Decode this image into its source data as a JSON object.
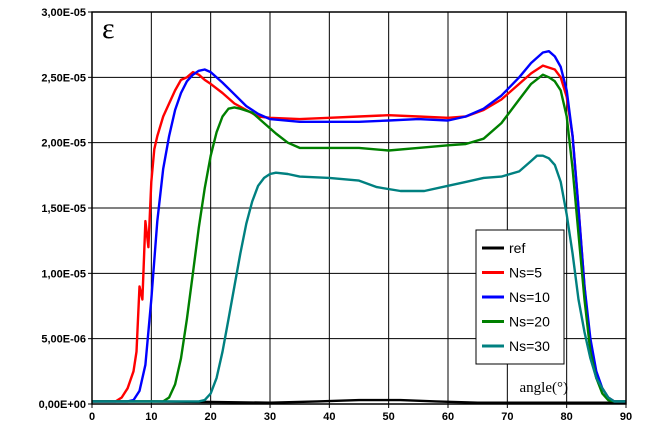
{
  "chart_data": {
    "type": "line",
    "title": "",
    "xlabel": "",
    "ylabel": "",
    "annotations": {
      "symbol": "ε",
      "x_unit": "angle(°)"
    },
    "xlim": [
      0,
      90
    ],
    "ylim": [
      0,
      3e-05
    ],
    "x_ticks": [
      0,
      10,
      20,
      30,
      40,
      50,
      60,
      70,
      80,
      90
    ],
    "x_tick_labels": [
      "0",
      "10",
      "20",
      "30",
      "40",
      "50",
      "60",
      "70",
      "80",
      "90"
    ],
    "y_ticks": [
      0,
      5e-06,
      1e-05,
      1.5e-05,
      2e-05,
      2.5e-05,
      3e-05
    ],
    "y_tick_labels": [
      "0,00E+00",
      "5,00E-06",
      "1,00E-05",
      "1,50E-05",
      "2,00E-05",
      "2,50E-05",
      "3,00E-05"
    ],
    "grid": true,
    "legend": {
      "position": "right-middle",
      "entries": [
        "ref",
        "Ns=5",
        "Ns=10",
        "Ns=20",
        "Ns=30"
      ]
    },
    "series": [
      {
        "name": "ref",
        "color": "#000000",
        "points": [
          [
            0,
            2e-07
          ],
          [
            10,
            2e-07
          ],
          [
            20,
            1.5e-07
          ],
          [
            30,
            1e-07
          ],
          [
            38,
            2e-07
          ],
          [
            45,
            3e-07
          ],
          [
            52,
            3e-07
          ],
          [
            58,
            2e-07
          ],
          [
            65,
            1e-07
          ],
          [
            75,
            1e-07
          ],
          [
            85,
            1e-07
          ],
          [
            90,
            1e-07
          ]
        ]
      },
      {
        "name": "Ns=5",
        "color": "#ff0000",
        "points": [
          [
            0,
            2e-07
          ],
          [
            4,
            2e-07
          ],
          [
            5,
            5e-07
          ],
          [
            6,
            1.2e-06
          ],
          [
            7,
            2.5e-06
          ],
          [
            7.5,
            4e-06
          ],
          [
            8,
            9e-06
          ],
          [
            8.5,
            8e-06
          ],
          [
            9,
            1.4e-05
          ],
          [
            9.5,
            1.2e-05
          ],
          [
            10,
            1.7e-05
          ],
          [
            10.5,
            1.95e-05
          ],
          [
            11,
            2.05e-05
          ],
          [
            12,
            2.2e-05
          ],
          [
            13,
            2.3e-05
          ],
          [
            14,
            2.4e-05
          ],
          [
            15,
            2.48e-05
          ],
          [
            16,
            2.5e-05
          ],
          [
            17,
            2.54e-05
          ],
          [
            18,
            2.52e-05
          ],
          [
            19,
            2.48e-05
          ],
          [
            20,
            2.45e-05
          ],
          [
            22,
            2.38e-05
          ],
          [
            24,
            2.3e-05
          ],
          [
            26,
            2.25e-05
          ],
          [
            28,
            2.2e-05
          ],
          [
            30,
            2.19e-05
          ],
          [
            35,
            2.18e-05
          ],
          [
            40,
            2.19e-05
          ],
          [
            45,
            2.2e-05
          ],
          [
            50,
            2.21e-05
          ],
          [
            55,
            2.2e-05
          ],
          [
            60,
            2.19e-05
          ],
          [
            63,
            2.2e-05
          ],
          [
            66,
            2.25e-05
          ],
          [
            69,
            2.33e-05
          ],
          [
            72,
            2.45e-05
          ],
          [
            74,
            2.53e-05
          ],
          [
            76,
            2.59e-05
          ],
          [
            78,
            2.56e-05
          ],
          [
            79,
            2.5e-05
          ],
          [
            80,
            2.35e-05
          ],
          [
            81,
            2.05e-05
          ],
          [
            82,
            1.5e-05
          ],
          [
            83,
            9e-06
          ],
          [
            84,
            4e-06
          ],
          [
            85,
            2e-06
          ],
          [
            86,
            1.2e-06
          ],
          [
            87,
            5e-07
          ],
          [
            88,
            2e-07
          ],
          [
            90,
            2e-07
          ]
        ]
      },
      {
        "name": "Ns=10",
        "color": "#0000ff",
        "points": [
          [
            0,
            2e-07
          ],
          [
            6,
            2e-07
          ],
          [
            7,
            3e-07
          ],
          [
            8,
            1e-06
          ],
          [
            9,
            3e-06
          ],
          [
            10,
            8e-06
          ],
          [
            11,
            1.4e-05
          ],
          [
            12,
            1.8e-05
          ],
          [
            13,
            2.05e-05
          ],
          [
            14,
            2.25e-05
          ],
          [
            15,
            2.38e-05
          ],
          [
            16,
            2.47e-05
          ],
          [
            17,
            2.52e-05
          ],
          [
            18,
            2.55e-05
          ],
          [
            19,
            2.56e-05
          ],
          [
            20,
            2.54e-05
          ],
          [
            22,
            2.46e-05
          ],
          [
            24,
            2.37e-05
          ],
          [
            26,
            2.28e-05
          ],
          [
            28,
            2.22e-05
          ],
          [
            30,
            2.18e-05
          ],
          [
            35,
            2.16e-05
          ],
          [
            40,
            2.16e-05
          ],
          [
            45,
            2.16e-05
          ],
          [
            50,
            2.17e-05
          ],
          [
            55,
            2.18e-05
          ],
          [
            60,
            2.17e-05
          ],
          [
            63,
            2.2e-05
          ],
          [
            66,
            2.26e-05
          ],
          [
            69,
            2.36e-05
          ],
          [
            72,
            2.5e-05
          ],
          [
            74,
            2.61e-05
          ],
          [
            76,
            2.69e-05
          ],
          [
            77,
            2.7e-05
          ],
          [
            78,
            2.66e-05
          ],
          [
            79,
            2.58e-05
          ],
          [
            80,
            2.4e-05
          ],
          [
            81,
            2.05e-05
          ],
          [
            82,
            1.5e-05
          ],
          [
            83,
            9e-06
          ],
          [
            84,
            5e-06
          ],
          [
            85,
            2.5e-06
          ],
          [
            86,
            1.2e-06
          ],
          [
            87,
            5e-07
          ],
          [
            88,
            2e-07
          ],
          [
            90,
            2e-07
          ]
        ]
      },
      {
        "name": "Ns=20",
        "color": "#008000",
        "points": [
          [
            0,
            2e-07
          ],
          [
            12,
            2e-07
          ],
          [
            13,
            5e-07
          ],
          [
            14,
            1.5e-06
          ],
          [
            15,
            3.5e-06
          ],
          [
            16,
            6.5e-06
          ],
          [
            17,
            1e-05
          ],
          [
            18,
            1.35e-05
          ],
          [
            19,
            1.65e-05
          ],
          [
            20,
            1.9e-05
          ],
          [
            21,
            2.08e-05
          ],
          [
            22,
            2.2e-05
          ],
          [
            23,
            2.26e-05
          ],
          [
            24,
            2.27e-05
          ],
          [
            25,
            2.26e-05
          ],
          [
            27,
            2.23e-05
          ],
          [
            29,
            2.15e-05
          ],
          [
            31,
            2.07e-05
          ],
          [
            33,
            2e-05
          ],
          [
            35,
            1.96e-05
          ],
          [
            40,
            1.96e-05
          ],
          [
            45,
            1.96e-05
          ],
          [
            50,
            1.94e-05
          ],
          [
            55,
            1.96e-05
          ],
          [
            60,
            1.98e-05
          ],
          [
            63,
            1.99e-05
          ],
          [
            66,
            2.03e-05
          ],
          [
            69,
            2.15e-05
          ],
          [
            72,
            2.33e-05
          ],
          [
            74,
            2.45e-05
          ],
          [
            76,
            2.52e-05
          ],
          [
            77,
            2.5e-05
          ],
          [
            78,
            2.47e-05
          ],
          [
            79,
            2.4e-05
          ],
          [
            80,
            2.2e-05
          ],
          [
            81,
            1.8e-05
          ],
          [
            82,
            1.3e-05
          ],
          [
            83,
            8e-06
          ],
          [
            84,
            4e-06
          ],
          [
            85,
            2e-06
          ],
          [
            86,
            8e-07
          ],
          [
            87,
            3e-07
          ],
          [
            88,
            2e-07
          ],
          [
            90,
            2e-07
          ]
        ]
      },
      {
        "name": "Ns=30",
        "color": "#008080",
        "points": [
          [
            0,
            2e-07
          ],
          [
            18,
            2e-07
          ],
          [
            19,
            3e-07
          ],
          [
            20,
            8e-07
          ],
          [
            21,
            2e-06
          ],
          [
            22,
            4e-06
          ],
          [
            23,
            6.5e-06
          ],
          [
            24,
            9e-06
          ],
          [
            25,
            1.15e-05
          ],
          [
            26,
            1.38e-05
          ],
          [
            27,
            1.55e-05
          ],
          [
            28,
            1.67e-05
          ],
          [
            29,
            1.73e-05
          ],
          [
            30,
            1.76e-05
          ],
          [
            31,
            1.77e-05
          ],
          [
            33,
            1.76e-05
          ],
          [
            35,
            1.74e-05
          ],
          [
            40,
            1.73e-05
          ],
          [
            45,
            1.71e-05
          ],
          [
            48,
            1.66e-05
          ],
          [
            52,
            1.63e-05
          ],
          [
            56,
            1.63e-05
          ],
          [
            60,
            1.67e-05
          ],
          [
            63,
            1.7e-05
          ],
          [
            66,
            1.73e-05
          ],
          [
            69,
            1.74e-05
          ],
          [
            72,
            1.78e-05
          ],
          [
            74,
            1.86e-05
          ],
          [
            75,
            1.9e-05
          ],
          [
            76,
            1.9e-05
          ],
          [
            77,
            1.88e-05
          ],
          [
            78,
            1.83e-05
          ],
          [
            79,
            1.7e-05
          ],
          [
            80,
            1.45e-05
          ],
          [
            81,
            1.15e-05
          ],
          [
            82,
            8e-06
          ],
          [
            83,
            5.5e-06
          ],
          [
            84,
            3.5e-06
          ],
          [
            85,
            2e-06
          ],
          [
            86,
            1.2e-06
          ],
          [
            87,
            5e-07
          ],
          [
            88,
            2e-07
          ],
          [
            90,
            2e-07
          ]
        ]
      }
    ]
  }
}
